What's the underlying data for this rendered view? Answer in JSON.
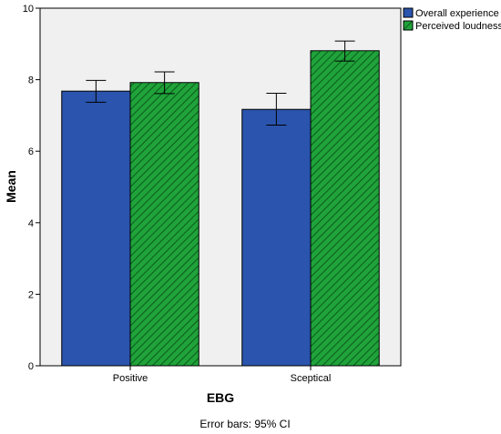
{
  "chart_data": {
    "type": "bar",
    "categories": [
      "Positive",
      "Sceptical"
    ],
    "series": [
      {
        "name": "Overall experience",
        "values": [
          7.68,
          7.17
        ],
        "ci_low": [
          7.37,
          6.73
        ],
        "ci_high": [
          7.98,
          7.62
        ],
        "color": "#2a54ad",
        "pattern": "solid"
      },
      {
        "name": "Perceived loudness",
        "values": [
          7.92,
          8.81
        ],
        "ci_low": [
          7.61,
          8.52
        ],
        "ci_high": [
          8.22,
          9.08
        ],
        "color": "#1fa33a",
        "pattern": "diagonal-hatch"
      }
    ],
    "xlabel": "EBG",
    "ylabel": "Mean",
    "ylim": [
      0,
      10
    ],
    "yticks": [
      0,
      2,
      4,
      6,
      8,
      10
    ],
    "grid": false,
    "legend_position": "top-right",
    "plot_background": "#f0f0f0",
    "footnote": "Error bars: 95% CI"
  }
}
